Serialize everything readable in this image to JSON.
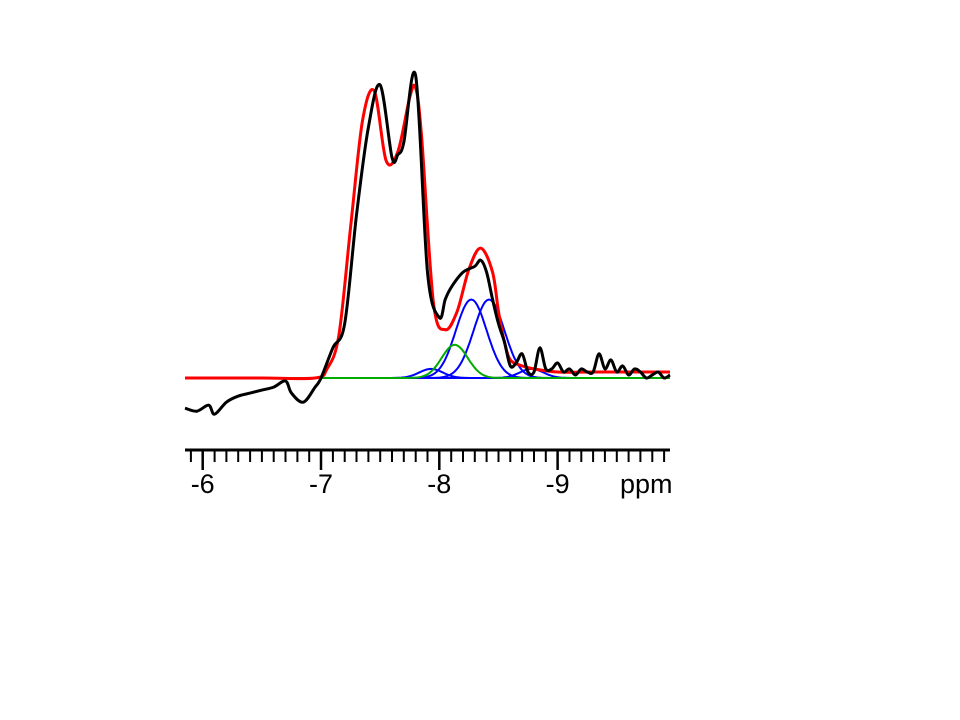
{
  "chart_data": {
    "type": "line",
    "xlabel": "ppm",
    "x_reversed": true,
    "xlim": [
      -5.85,
      -9.95
    ],
    "ylim": [
      -0.16,
      1.0
    ],
    "major_ticks": [
      -6,
      -7,
      -8,
      -9
    ],
    "tick_labels": [
      "-6",
      "-7",
      "-8",
      "-9"
    ],
    "minor_tick_step": 0.1,
    "grid": false,
    "legend": "none",
    "series": [
      {
        "key": "experimental",
        "color": "#000000",
        "x": [
          -5.85,
          -5.95,
          -6.05,
          -6.1,
          -6.2,
          -6.3,
          -6.4,
          -6.5,
          -6.6,
          -6.7,
          -6.75,
          -6.85,
          -6.95,
          -7.0,
          -7.1,
          -7.2,
          -7.3,
          -7.4,
          -7.5,
          -7.6,
          -7.65,
          -7.7,
          -7.8,
          -7.9,
          -8.0,
          -8.05,
          -8.1,
          -8.2,
          -8.3,
          -8.35,
          -8.4,
          -8.45,
          -8.5,
          -8.55,
          -8.6,
          -8.65,
          -8.7,
          -8.75,
          -8.8,
          -8.85,
          -8.9,
          -8.95,
          -9.0,
          -9.05,
          -9.1,
          -9.15,
          -9.2,
          -9.25,
          -9.3,
          -9.35,
          -9.4,
          -9.45,
          -9.5,
          -9.55,
          -9.6,
          -9.65,
          -9.7,
          -9.75,
          -9.8,
          -9.85,
          -9.9,
          -9.95
        ],
        "y": [
          -0.1,
          -0.11,
          -0.09,
          -0.12,
          -0.08,
          -0.06,
          -0.05,
          -0.04,
          -0.03,
          -0.01,
          -0.05,
          -0.08,
          -0.03,
          0.0,
          0.1,
          0.18,
          0.54,
          0.83,
          0.97,
          0.73,
          0.74,
          0.78,
          1.0,
          0.35,
          0.2,
          0.26,
          0.3,
          0.35,
          0.37,
          0.39,
          0.35,
          0.26,
          0.18,
          0.12,
          0.04,
          0.05,
          0.08,
          0.02,
          0.02,
          0.1,
          0.03,
          0.03,
          0.05,
          0.02,
          0.03,
          0.01,
          0.03,
          0.02,
          0.02,
          0.08,
          0.03,
          0.06,
          0.02,
          0.04,
          0.01,
          0.03,
          0.02,
          0.0,
          0.01,
          0.02,
          0.0,
          0.01
        ]
      },
      {
        "key": "fit-sum",
        "color": "#ff0000",
        "x": [
          -5.85,
          -6.5,
          -6.95,
          -7.05,
          -7.15,
          -7.25,
          -7.35,
          -7.45,
          -7.55,
          -7.65,
          -7.75,
          -7.8,
          -7.85,
          -7.95,
          -8.05,
          -8.15,
          -8.25,
          -8.35,
          -8.45,
          -8.5,
          -8.55,
          -8.6,
          -8.7,
          -8.8,
          -9.0,
          -9.3,
          -9.6,
          -9.95
        ],
        "y": [
          0.0,
          0.0,
          0.0,
          0.03,
          0.14,
          0.5,
          0.85,
          0.95,
          0.72,
          0.75,
          0.93,
          0.96,
          0.8,
          0.25,
          0.16,
          0.22,
          0.36,
          0.43,
          0.35,
          0.22,
          0.12,
          0.06,
          0.04,
          0.03,
          0.02,
          0.02,
          0.02,
          0.02
        ]
      },
      {
        "key": "blue-1",
        "color": "#0000ff",
        "shape": "gaussian",
        "center": -7.93,
        "height": 0.03,
        "width": 0.1,
        "domain": [
          -6.0,
          -9.95
        ]
      },
      {
        "key": "blue-2",
        "color": "#0000ff",
        "shape": "gaussian",
        "center": -8.27,
        "height": 0.26,
        "width": 0.13,
        "domain": [
          -6.0,
          -9.95
        ]
      },
      {
        "key": "blue-3",
        "color": "#0000ff",
        "shape": "gaussian",
        "center": -8.42,
        "height": 0.26,
        "width": 0.13,
        "domain": [
          -6.0,
          -9.95
        ]
      },
      {
        "key": "blue-4",
        "color": "#0000ff",
        "shape": "gaussian",
        "center": -8.78,
        "height": 0.03,
        "width": 0.1,
        "domain": [
          -6.0,
          -9.95
        ]
      },
      {
        "key": "green-1",
        "color": "#00aa00",
        "shape": "gaussian",
        "center": -8.13,
        "height": 0.11,
        "width": 0.11,
        "domain": [
          -5.85,
          -9.95
        ]
      }
    ]
  }
}
